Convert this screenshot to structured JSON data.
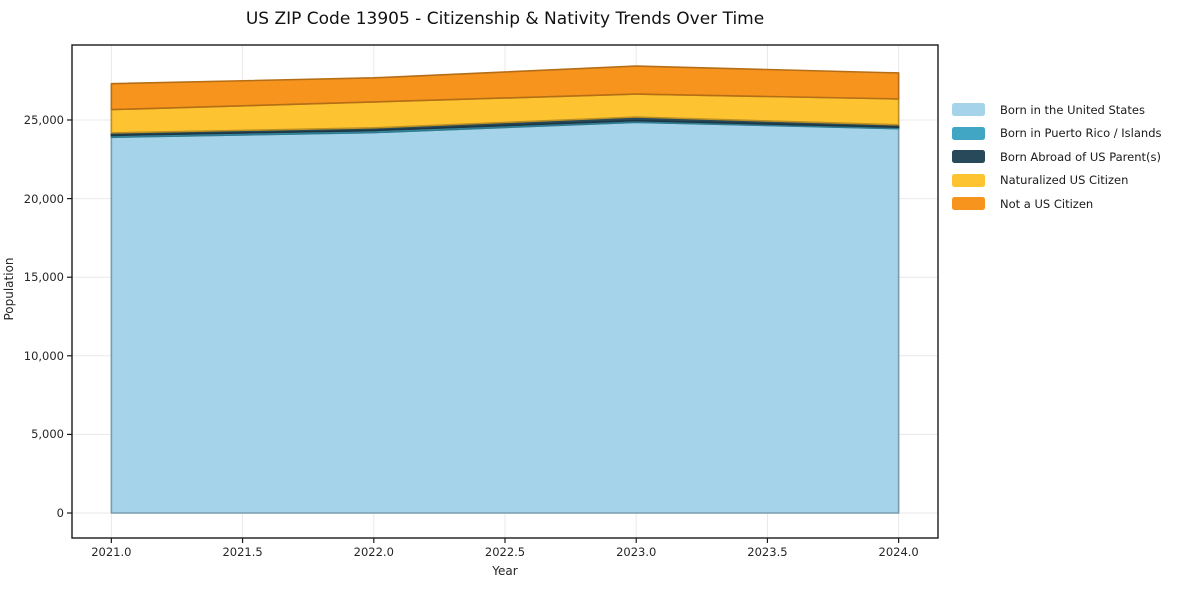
{
  "chart_data": {
    "type": "area",
    "stacked": true,
    "title": "US ZIP Code 13905 - Citizenship & Nativity Trends Over Time",
    "xlabel": "Year",
    "ylabel": "Population",
    "x": [
      2021,
      2022,
      2023,
      2024
    ],
    "series": [
      {
        "name": "Born in the United States",
        "color": "#a5d3ea",
        "values": [
          23900,
          24200,
          24850,
          24450
        ]
      },
      {
        "name": "Born in Puerto Rico / Islands",
        "color": "#41a6c3",
        "values": [
          120,
          130,
          110,
          90
        ]
      },
      {
        "name": "Born Abroad of US Parent(s)",
        "color": "#27495a",
        "values": [
          160,
          170,
          230,
          150
        ]
      },
      {
        "name": "Naturalized US Citizen",
        "color": "#fdc330",
        "values": [
          1480,
          1650,
          1460,
          1650
        ]
      },
      {
        "name": "Not a US Citizen",
        "color": "#f6941e",
        "values": [
          1650,
          1530,
          1780,
          1650
        ]
      }
    ],
    "totals": [
      27310,
      27680,
      28430,
      27990
    ],
    "xlim": [
      2020.85,
      2024.15
    ],
    "ylim": [
      -1590,
      29770
    ],
    "x_ticks": {
      "values": [
        2021.0,
        2021.5,
        2022.0,
        2022.5,
        2023.0,
        2023.5,
        2024.0
      ],
      "labels": [
        "2021.0",
        "2021.5",
        "2022.0",
        "2022.5",
        "2023.0",
        "2023.5",
        "2024.0"
      ]
    },
    "y_ticks": {
      "values": [
        0,
        5000,
        10000,
        15000,
        20000,
        25000
      ],
      "labels": [
        "0",
        "5,000",
        "10,000",
        "15,000",
        "20,000",
        "25,000"
      ]
    },
    "grid": true,
    "legend_position": "right"
  }
}
